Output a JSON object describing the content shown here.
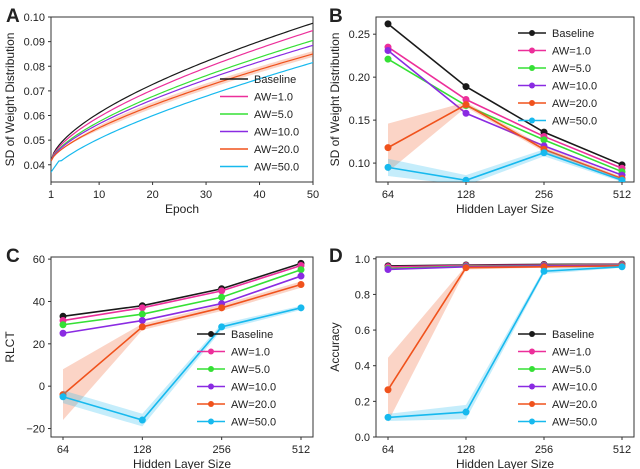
{
  "colors": {
    "Baseline": "#1a1a1a",
    "AW=1.0": "#ec2f9a",
    "AW=5.0": "#35e035",
    "AW=10.0": "#8a2be2",
    "AW=20.0": "#f0521c",
    "AW=50.0": "#17b9ee"
  },
  "chart_data": [
    {
      "panel": "A",
      "type": "line",
      "xlabel": "Epoch",
      "ylabel": "SD of Weight Distribution",
      "xticks": [
        1,
        10,
        20,
        30,
        40,
        50
      ],
      "yticks": [
        0.04,
        0.05,
        0.06,
        0.07,
        0.08,
        0.09,
        0.1
      ],
      "ytick_labels": [
        "0.04",
        "0.05",
        "0.06",
        "0.07",
        "0.08",
        "0.09",
        "0.10"
      ],
      "xlim": [
        1,
        50
      ],
      "ylim": [
        0.033,
        0.1
      ],
      "legend": "lower-right",
      "series": [
        {
          "name": "Baseline",
          "start": 0.0415,
          "end": 0.0975,
          "exponent": 0.62
        },
        {
          "name": "AW=1.0",
          "start": 0.0415,
          "end": 0.0945,
          "exponent": 0.64
        },
        {
          "name": "AW=5.0",
          "start": 0.0415,
          "end": 0.0905,
          "exponent": 0.66
        },
        {
          "name": "AW=10.0",
          "start": 0.0415,
          "end": 0.0885,
          "exponent": 0.67
        },
        {
          "name": "AW=20.0",
          "start": 0.0415,
          "end": 0.085,
          "exponent": 0.69,
          "band": 0.0012
        },
        {
          "name": "AW=50.0",
          "start": 0.037,
          "end": 0.0815,
          "exponent": 0.7
        }
      ]
    },
    {
      "panel": "B",
      "type": "line",
      "xlabel": "Hidden Layer Size",
      "ylabel": "SD of Weight Distribution",
      "categories": [
        "64",
        "128",
        "256",
        "512"
      ],
      "yticks": [
        0.1,
        0.15,
        0.2,
        0.25
      ],
      "ytick_labels": [
        "0.10",
        "0.15",
        "0.20",
        "0.25"
      ],
      "ylim": [
        0.078,
        0.27
      ],
      "legend": "top-right",
      "series": [
        {
          "name": "Baseline",
          "values": [
            0.262,
            0.189,
            0.136,
            0.098
          ]
        },
        {
          "name": "AW=1.0",
          "values": [
            0.235,
            0.174,
            0.131,
            0.094
          ]
        },
        {
          "name": "AW=5.0",
          "values": [
            0.221,
            0.167,
            0.127,
            0.09
          ]
        },
        {
          "name": "AW=10.0",
          "values": [
            0.231,
            0.158,
            0.12,
            0.086
          ]
        },
        {
          "name": "AW=20.0",
          "values": [
            0.118,
            0.168,
            0.116,
            0.082
          ],
          "band": [
            0.028,
            0.003,
            0.003,
            0.002
          ]
        },
        {
          "name": "AW=50.0",
          "values": [
            0.095,
            0.08,
            0.112,
            0.08
          ],
          "band": [
            0.01,
            0.006,
            0.004,
            0.002
          ]
        }
      ]
    },
    {
      "panel": "C",
      "type": "line",
      "xlabel": "Hidden Layer Size",
      "ylabel": "RLCT",
      "categories": [
        "64",
        "128",
        "256",
        "512"
      ],
      "yticks": [
        -20,
        0,
        20,
        40,
        60
      ],
      "ytick_labels": [
        "−20",
        "0",
        "20",
        "40",
        "60"
      ],
      "ylim": [
        -24,
        61
      ],
      "legend": "lower-right",
      "series": [
        {
          "name": "Baseline",
          "values": [
            33,
            38,
            46,
            58
          ]
        },
        {
          "name": "AW=1.0",
          "values": [
            31,
            37,
            45,
            57
          ]
        },
        {
          "name": "AW=5.0",
          "values": [
            29,
            34,
            42,
            55
          ]
        },
        {
          "name": "AW=10.0",
          "values": [
            25,
            31,
            39,
            52
          ]
        },
        {
          "name": "AW=20.0",
          "values": [
            -4,
            28,
            37,
            48
          ],
          "band": [
            12,
            1.5,
            1.5,
            1.5
          ]
        },
        {
          "name": "AW=50.0",
          "values": [
            -5,
            -16,
            28,
            37
          ],
          "band": [
            3,
            3,
            1.5,
            1
          ]
        }
      ]
    },
    {
      "panel": "D",
      "type": "line",
      "xlabel": "Hidden Layer Size",
      "ylabel": "Accuracy",
      "categories": [
        "64",
        "128",
        "256",
        "512"
      ],
      "yticks": [
        0.0,
        0.2,
        0.4,
        0.6,
        0.8,
        1.0
      ],
      "ytick_labels": [
        "0.0",
        "0.2",
        "0.4",
        "0.6",
        "0.8",
        "1.0"
      ],
      "ylim": [
        0.0,
        1.01
      ],
      "legend": "lower-right",
      "series": [
        {
          "name": "Baseline",
          "values": [
            0.96,
            0.965,
            0.968,
            0.97
          ]
        },
        {
          "name": "AW=1.0",
          "values": [
            0.955,
            0.962,
            0.965,
            0.968
          ]
        },
        {
          "name": "AW=5.0",
          "values": [
            0.945,
            0.958,
            0.962,
            0.965
          ]
        },
        {
          "name": "AW=10.0",
          "values": [
            0.94,
            0.955,
            0.96,
            0.963
          ]
        },
        {
          "name": "AW=20.0",
          "values": [
            0.265,
            0.95,
            0.955,
            0.96
          ],
          "band": [
            0.18,
            0.01,
            0.005,
            0.005
          ]
        },
        {
          "name": "AW=50.0",
          "values": [
            0.11,
            0.14,
            0.93,
            0.955
          ],
          "band": [
            0.02,
            0.04,
            0.015,
            0.005
          ]
        }
      ]
    }
  ]
}
